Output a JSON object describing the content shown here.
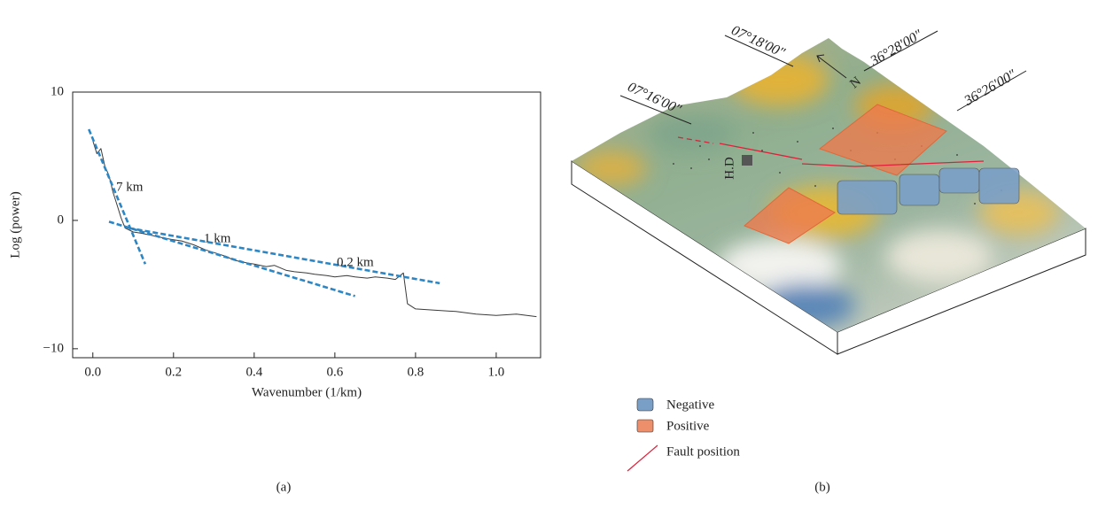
{
  "chart_data": {
    "type": "line",
    "xlabel": "Wavenumber (1/km)",
    "ylabel": "Log (power)",
    "xlim": [
      -0.05,
      1.11
    ],
    "ylim": [
      -10.7,
      10
    ],
    "xticks": [
      {
        "value": 0,
        "label": "0.0"
      },
      0.2,
      0.4,
      0.6,
      0.8,
      {
        "value": 1,
        "label": "1.0"
      }
    ],
    "yticks": [
      {
        "value": -10,
        "label": "−10"
      },
      0,
      10
    ],
    "series": [
      {
        "color": "#3a3a3a",
        "x": [
          0.0,
          0.01,
          0.02,
          0.03,
          0.04,
          0.05,
          0.06,
          0.07,
          0.08,
          0.1,
          0.12,
          0.15,
          0.18,
          0.2,
          0.22,
          0.25,
          0.28,
          0.3,
          0.33,
          0.35,
          0.38,
          0.4,
          0.43,
          0.45,
          0.48,
          0.5,
          0.53,
          0.55,
          0.58,
          0.6,
          0.63,
          0.65,
          0.68,
          0.7,
          0.73,
          0.75,
          0.77,
          0.78,
          0.8,
          0.85,
          0.9,
          0.95,
          1.0,
          1.05,
          1.1
        ],
        "values": [
          6.2,
          5.2,
          5.6,
          4.2,
          3.5,
          2.2,
          1.2,
          0.2,
          -0.6,
          -0.9,
          -1.0,
          -1.2,
          -1.4,
          -1.5,
          -1.6,
          -1.9,
          -2.3,
          -2.5,
          -2.8,
          -3.1,
          -3.3,
          -3.4,
          -3.6,
          -3.5,
          -3.9,
          -4.0,
          -4.1,
          -4.2,
          -4.3,
          -4.4,
          -4.3,
          -4.4,
          -4.5,
          -4.4,
          -4.5,
          -4.6,
          -4.1,
          -6.5,
          -6.9,
          -7.0,
          -7.1,
          -7.3,
          -7.4,
          -7.3,
          -7.5
        ]
      },
      {
        "name": "7 km",
        "color": "#2d86c4",
        "dashed": true,
        "x": [
          -0.01,
          0.13
        ],
        "values": [
          7.1,
          -3.4
        ]
      },
      {
        "name": "1 km",
        "color": "#2d86c4",
        "dashed": true,
        "x": [
          0.04,
          0.65
        ],
        "values": [
          -0.1,
          -5.9
        ]
      },
      {
        "name": "0.2 km",
        "color": "#2d86c4",
        "dashed": true,
        "x": [
          0.09,
          0.86
        ],
        "values": [
          -0.6,
          -4.9
        ]
      }
    ]
  },
  "panel_b": {
    "coordinates": [
      "07°18′00″",
      "36°28′00″",
      "07°16′00″",
      "36°26′00″"
    ],
    "north": "N",
    "site": "H.D",
    "legend": [
      "Negative",
      "Positive",
      "Fault position"
    ]
  },
  "captions": [
    "(a)",
    "(b)"
  ]
}
